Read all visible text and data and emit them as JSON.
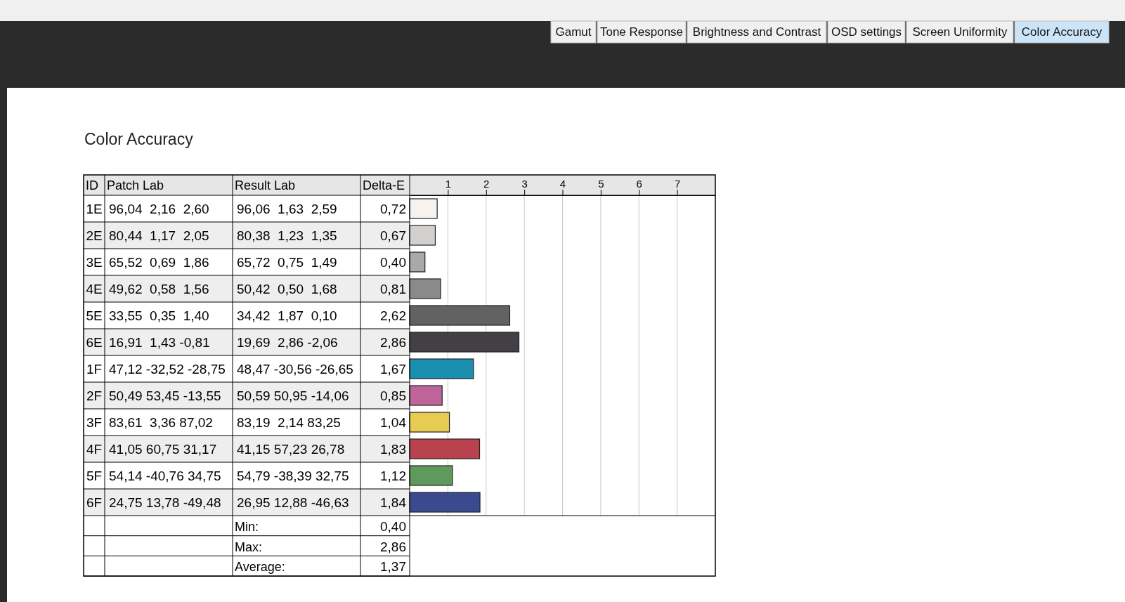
{
  "chart_data": {
    "type": "bar",
    "orientation": "horizontal",
    "title": "Color Accuracy",
    "ylabel": "ID",
    "xlabel": "Delta-E",
    "categories": [
      "1E",
      "2E",
      "3E",
      "4E",
      "5E",
      "6E",
      "1F",
      "2F",
      "3F",
      "4F",
      "5F",
      "6F"
    ],
    "values": [
      0.72,
      0.67,
      0.4,
      0.81,
      2.62,
      2.86,
      1.67,
      0.85,
      1.04,
      1.83,
      1.12,
      1.84
    ],
    "value_labels": [
      "0,72",
      "0,67",
      "0,40",
      "0,81",
      "2,62",
      "2,86",
      "1,67",
      "0,85",
      "1,04",
      "1,83",
      "1,12",
      "1,84"
    ],
    "colors": [
      "#f7f1ef",
      "#d3d0d0",
      "#a9a9a9",
      "#8a8a8a",
      "#626262",
      "#434045",
      "#1a8fb0",
      "#c0649c",
      "#e6cc52",
      "#b8434f",
      "#5e9a5c",
      "#3b4a8f"
    ],
    "x2lim": [
      0,
      8
    ],
    "x2ticks": [
      1,
      2,
      3,
      4,
      5,
      6,
      7
    ],
    "grid": "x",
    "annotations": [
      "Gamut",
      "Tone Response",
      "Brightness and Contrast",
      "OSD settings",
      "Screen Uniformity",
      "Color Accuracy",
      "Patch Lab",
      "Result Lab",
      "Min:",
      "0,40",
      "Max:",
      "2,86",
      "Average:",
      "1,37",
      "96,04  2,16  2,60",
      "80,44  1,17  2,05",
      "65,52  0,69  1,86",
      "49,62  0,58  1,56",
      "33,55  0,35  1,40",
      "16,91  1,43 -0,81",
      "47,12 -32,52 -28,75",
      "50,49 53,45 -13,55",
      "83,61  3,36 87,02",
      "41,05 60,75 31,17",
      "54,14 -40,76 34,75",
      "24,75 13,78 -49,48",
      "96,06  1,63  2,59",
      "80,38  1,23  1,35",
      "65,72  0,75  1,49",
      "50,42  0,50  1,68",
      "34,42  1,87  0,10",
      "19,69  2,86 -2,06",
      "48,47 -30,56 -26,65",
      "50,59 50,95 -14,06",
      "83,19  2,14 83,25",
      "41,15 57,23 26,78",
      "54,79 -38,39 32,75",
      "26,95 12,88 -46,63"
    ]
  }
}
